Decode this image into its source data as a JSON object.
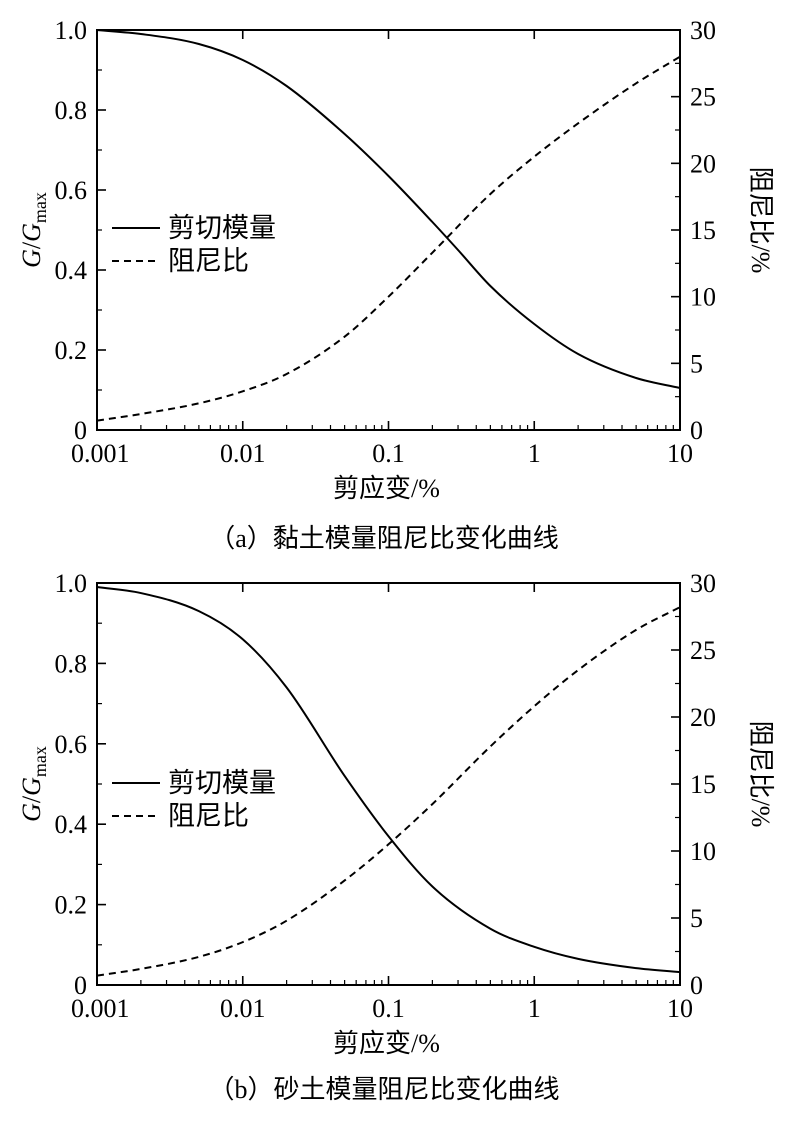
{
  "chart_data": [
    {
      "type": "line",
      "caption": "（a）黏土模量阻尼比变化曲线",
      "xlabel": "剪应变/%",
      "ylabel": "G/Gmax",
      "ylabel_parts": {
        "g1": "G",
        "slash": "/",
        "g2": "G",
        "sub": "max"
      },
      "y2label": "阻尼比/%",
      "xscale": "log",
      "xlim": [
        0.001,
        10
      ],
      "ylim": [
        0,
        1.0
      ],
      "y2lim": [
        0,
        30
      ],
      "xticks": [
        "0.001",
        "0.01",
        "0.1",
        "1",
        "10"
      ],
      "yticks": [
        "0",
        "0.2",
        "0.4",
        "0.6",
        "0.8",
        "1.0"
      ],
      "y2ticks": [
        "0",
        "5",
        "10",
        "15",
        "20",
        "25",
        "30"
      ],
      "grid": false,
      "legend_position": "left-middle",
      "series": [
        {
          "name": "剪切模量",
          "axis": "left",
          "style": "solid",
          "x": [
            0.001,
            0.002,
            0.005,
            0.01,
            0.02,
            0.05,
            0.1,
            0.2,
            0.3,
            0.5,
            1,
            2,
            5,
            10
          ],
          "y": [
            1.0,
            0.99,
            0.965,
            0.925,
            0.86,
            0.74,
            0.635,
            0.52,
            0.45,
            0.36,
            0.265,
            0.19,
            0.13,
            0.105
          ]
        },
        {
          "name": "阻尼比",
          "axis": "right",
          "style": "dashed",
          "x": [
            0.001,
            0.002,
            0.005,
            0.01,
            0.02,
            0.05,
            0.1,
            0.2,
            0.5,
            1,
            2,
            5,
            10
          ],
          "y": [
            0.7,
            1.2,
            2.0,
            2.9,
            4.2,
            7.0,
            10.0,
            13.3,
            17.7,
            20.5,
            23.0,
            26.0,
            28.0
          ]
        }
      ]
    },
    {
      "type": "line",
      "caption": "（b）砂土模量阻尼比变化曲线",
      "xlabel": "剪应变/%",
      "ylabel": "G/Gmax",
      "ylabel_parts": {
        "g1": "G",
        "slash": "/",
        "g2": "G",
        "sub": "max"
      },
      "y2label": "阻尼比/%",
      "xscale": "log",
      "xlim": [
        0.001,
        10
      ],
      "ylim": [
        0,
        1.0
      ],
      "y2lim": [
        0,
        30
      ],
      "xticks": [
        "0.001",
        "0.01",
        "0.1",
        "1",
        "10"
      ],
      "yticks": [
        "0",
        "0.2",
        "0.4",
        "0.6",
        "0.8",
        "1.0"
      ],
      "y2ticks": [
        "0",
        "5",
        "10",
        "15",
        "20",
        "25",
        "30"
      ],
      "grid": false,
      "legend_position": "left-middle",
      "series": [
        {
          "name": "剪切模量",
          "axis": "left",
          "style": "solid",
          "x": [
            0.001,
            0.002,
            0.005,
            0.01,
            0.02,
            0.05,
            0.1,
            0.2,
            0.5,
            1,
            2,
            5,
            10
          ],
          "y": [
            0.99,
            0.975,
            0.93,
            0.86,
            0.74,
            0.52,
            0.37,
            0.245,
            0.14,
            0.095,
            0.065,
            0.042,
            0.032
          ]
        },
        {
          "name": "阻尼比",
          "axis": "right",
          "style": "dashed",
          "x": [
            0.001,
            0.002,
            0.005,
            0.01,
            0.02,
            0.05,
            0.1,
            0.2,
            0.5,
            1,
            2,
            5,
            10
          ],
          "y": [
            0.7,
            1.2,
            2.1,
            3.2,
            4.8,
            7.8,
            10.5,
            13.5,
            17.8,
            20.8,
            23.5,
            26.5,
            28.2
          ]
        }
      ]
    }
  ]
}
